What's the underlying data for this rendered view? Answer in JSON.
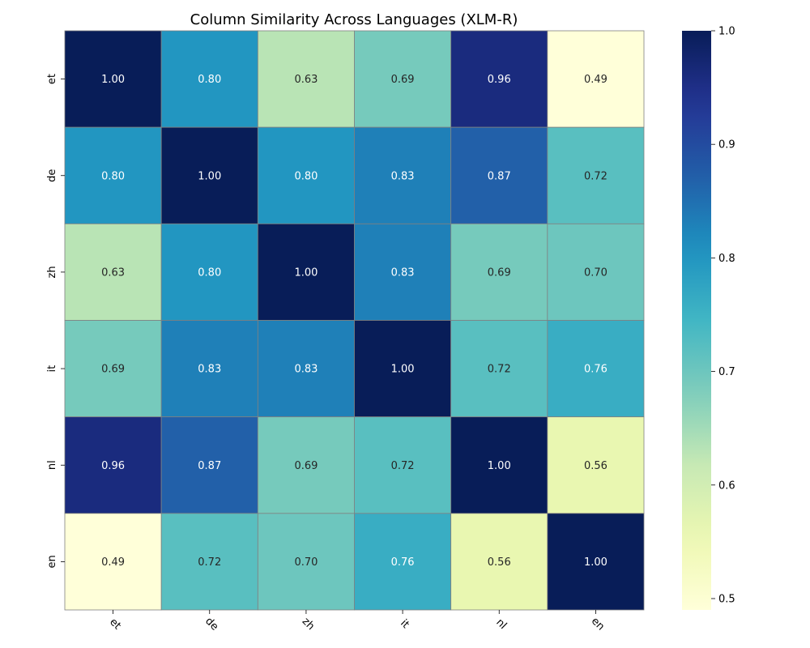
{
  "chart_data": {
    "type": "heatmap",
    "title": "Column Similarity Across Languages (XLM-R)",
    "xlabel": "",
    "ylabel": "",
    "x_categories": [
      "et",
      "de",
      "zh",
      "it",
      "nl",
      "en"
    ],
    "y_categories": [
      "et",
      "de",
      "zh",
      "it",
      "nl",
      "en"
    ],
    "values": [
      [
        1.0,
        0.8,
        0.63,
        0.69,
        0.96,
        0.49
      ],
      [
        0.8,
        1.0,
        0.8,
        0.83,
        0.87,
        0.72
      ],
      [
        0.63,
        0.8,
        1.0,
        0.83,
        0.69,
        0.7
      ],
      [
        0.69,
        0.83,
        0.83,
        1.0,
        0.72,
        0.76
      ],
      [
        0.96,
        0.87,
        0.69,
        0.72,
        1.0,
        0.56
      ],
      [
        0.49,
        0.72,
        0.7,
        0.76,
        0.56,
        1.0
      ]
    ],
    "value_format": "0.00",
    "colormap": "YlGnBu",
    "colorbar": {
      "range": [
        0.49,
        1.0
      ],
      "ticks": [
        0.5,
        0.6,
        0.7,
        0.8,
        0.9,
        1.0
      ],
      "tick_labels": [
        "0.5",
        "0.6",
        "0.7",
        "0.8",
        "0.9",
        "1.0"
      ]
    },
    "cell_border_color": "#808080",
    "x_tick_rotation": "45deg",
    "y_tick_rotation": "90deg"
  }
}
